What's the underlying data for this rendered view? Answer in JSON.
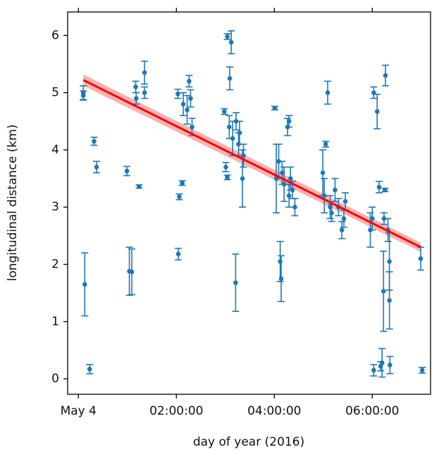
{
  "chart_data": {
    "type": "scatter",
    "x_label": "day of year (2016)",
    "y_label": "longitudinal distance (km)",
    "xlim": [
      -0.22,
      7.19
    ],
    "ylim": [
      -0.27,
      6.41
    ],
    "xticks": [
      {
        "value": 0,
        "label": "May 4"
      },
      {
        "value": 2,
        "label": "02:00:00"
      },
      {
        "value": 4,
        "label": "04:00:00"
      },
      {
        "value": 6,
        "label": "06:00:00"
      }
    ],
    "yticks": [
      0,
      1,
      2,
      3,
      4,
      5,
      6
    ],
    "series": [
      {
        "color": "#1f77b4",
        "x": [
          0.1,
          0.1,
          0.13,
          0.23,
          0.32,
          0.37,
          0.99,
          1.04,
          1.09,
          1.17,
          1.18,
          1.24,
          1.35,
          1.35,
          2.03,
          2.04,
          2.06,
          2.12,
          2.14,
          2.22,
          2.26,
          2.29,
          2.32,
          2.98,
          3.01,
          3.04,
          3.04,
          3.08,
          3.09,
          3.12,
          3.15,
          3.21,
          3.22,
          3.27,
          3.29,
          3.35,
          3.37,
          4.01,
          4.04,
          4.09,
          4.12,
          4.14,
          4.16,
          4.2,
          4.27,
          4.3,
          4.33,
          4.37,
          4.42,
          4.3,
          4.99,
          5.02,
          5.05,
          5.09,
          5.14,
          5.17,
          5.24,
          5.31,
          5.38,
          5.42,
          5.45,
          5.96,
          6.0,
          6.03,
          6.03,
          6.1,
          6.14,
          6.17,
          6.2,
          6.23,
          6.24,
          6.26,
          6.27,
          6.32,
          6.35,
          6.35,
          6.36,
          6.99,
          7.02
        ],
        "values": [
          5.0,
          4.95,
          1.65,
          0.17,
          4.15,
          3.7,
          3.63,
          1.88,
          1.87,
          5.1,
          4.9,
          3.36,
          5.0,
          5.35,
          4.98,
          2.18,
          3.18,
          3.42,
          4.8,
          4.7,
          5.2,
          4.9,
          4.4,
          4.67,
          3.7,
          3.52,
          5.98,
          4.4,
          5.25,
          5.88,
          4.2,
          1.68,
          4.5,
          4.1,
          4.3,
          3.5,
          3.9,
          4.73,
          3.5,
          3.8,
          2.05,
          1.75,
          3.6,
          3.4,
          4.4,
          3.2,
          3.5,
          3.3,
          3.0,
          4.5,
          3.6,
          3.2,
          4.1,
          5.0,
          3.0,
          2.9,
          3.3,
          3.0,
          2.6,
          2.8,
          3.1,
          2.6,
          2.8,
          0.15,
          5.0,
          4.67,
          3.35,
          0.22,
          0.28,
          1.53,
          2.8,
          3.3,
          5.3,
          2.6,
          1.37,
          2.05,
          0.24,
          2.1,
          0.15
        ],
        "errors": [
          0.12,
          0.08,
          0.55,
          0.08,
          0.07,
          0.1,
          0.08,
          0.42,
          0.4,
          0.1,
          0.1,
          0.03,
          0.1,
          0.2,
          0.08,
          0.1,
          0.05,
          0.04,
          0.2,
          0.25,
          0.1,
          0.15,
          0.15,
          0.05,
          0.08,
          0.04,
          0.05,
          0.2,
          0.2,
          0.2,
          0.3,
          0.5,
          0.15,
          0.2,
          0.2,
          0.5,
          0.2,
          0.03,
          0.6,
          0.3,
          0.35,
          0.4,
          0.2,
          0.3,
          0.15,
          0.2,
          0.2,
          0.15,
          0.15,
          0.1,
          0.4,
          0.3,
          0.05,
          0.2,
          0.2,
          0.15,
          0.2,
          0.15,
          0.15,
          0.15,
          0.15,
          0.3,
          0.2,
          0.1,
          0.1,
          0.3,
          0.1,
          0.08,
          0.25,
          0.7,
          0.1,
          0.03,
          0.18,
          0.2,
          0.5,
          0.5,
          0.15,
          0.2,
          0.05
        ]
      }
    ],
    "fit": {
      "color": "#ff0000",
      "band_color": "#f4a0a0",
      "x": [
        0.1,
        6.99
      ],
      "values": [
        5.22,
        2.3
      ],
      "lower": [
        5.12,
        2.22
      ],
      "upper": [
        5.32,
        2.38
      ]
    }
  }
}
